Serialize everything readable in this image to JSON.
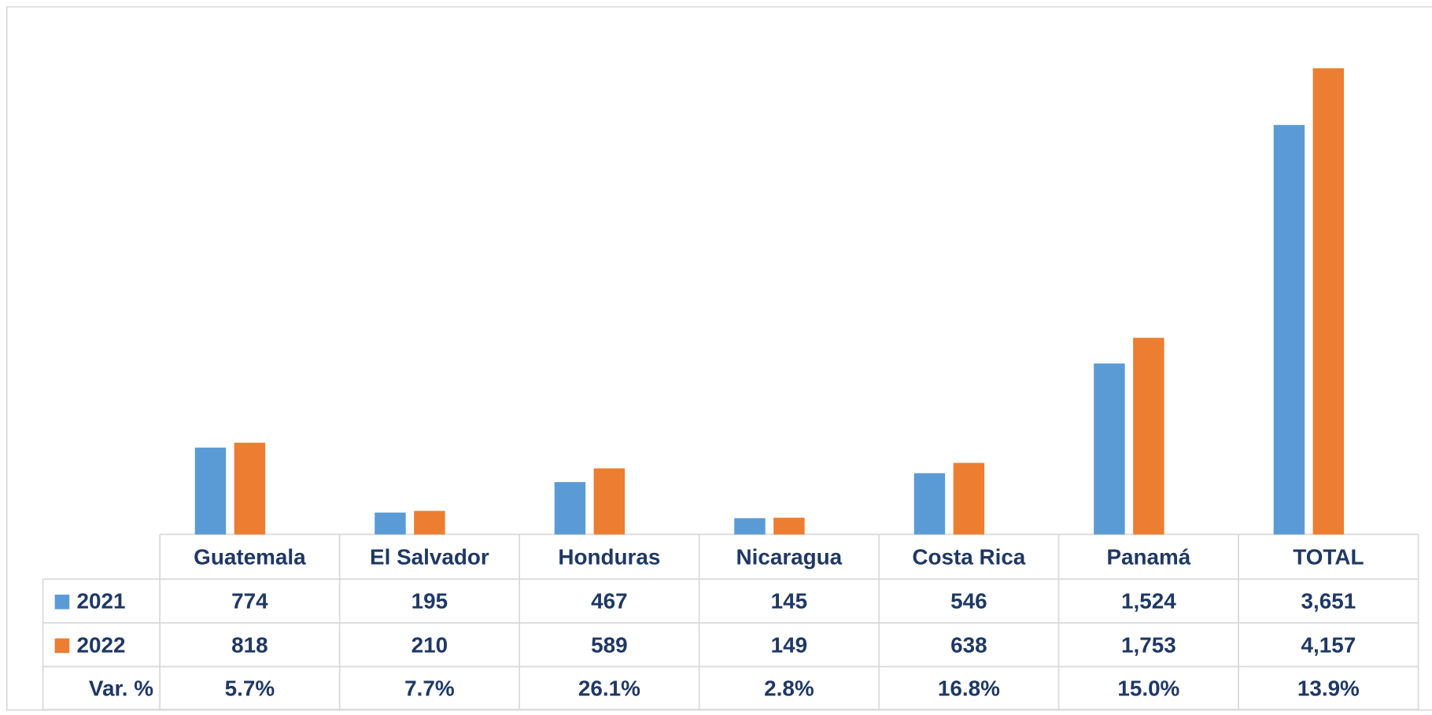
{
  "chart_data": {
    "type": "bar",
    "categories": [
      "Guatemala",
      "El Salvador",
      "Honduras",
      "Nicaragua",
      "Costa Rica",
      "Panamá",
      "TOTAL"
    ],
    "series": [
      {
        "name": "2021",
        "color": "#5b9bd5",
        "values": [
          774,
          195,
          467,
          145,
          546,
          1524,
          3651
        ],
        "value_labels": [
          "774",
          "195",
          "467",
          "145",
          "546",
          "1,524",
          "3,651"
        ]
      },
      {
        "name": "2022",
        "color": "#ed7d31",
        "values": [
          818,
          210,
          589,
          149,
          638,
          1753,
          4157
        ],
        "value_labels": [
          "818",
          "210",
          "589",
          "149",
          "638",
          "1,753",
          "4,157"
        ]
      }
    ],
    "variation": {
      "name": "Var. %",
      "values": [
        5.7,
        7.7,
        26.1,
        2.8,
        16.8,
        15.0,
        13.9
      ],
      "value_labels": [
        "5.7%",
        "7.7%",
        "26.1%",
        "2.8%",
        "16.8%",
        "15.0%",
        "13.9%"
      ]
    },
    "ylim": [
      0,
      4700
    ]
  }
}
